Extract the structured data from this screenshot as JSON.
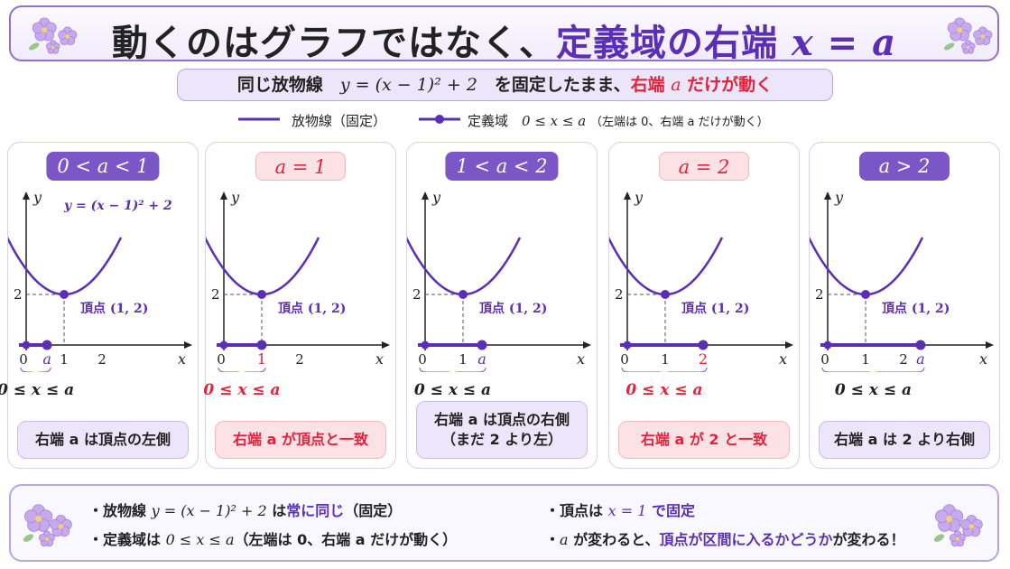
{
  "header": {
    "title_main": "動くのはグラフではなく、",
    "title_highlight": "定義域の右端",
    "title_math": "x = a"
  },
  "subtitle": {
    "text1": "同じ放物線　",
    "math": "y = (x − 1)² + 2",
    "text2": "　を固定したまま、",
    "red_text": "右端 ",
    "red_math": "a",
    "red_text2": " だけが動く"
  },
  "legend": {
    "parabola_label": "放物線（固定）",
    "domain_label": "定義域",
    "domain_math": "0 ≤ x ≤ a",
    "domain_note": "（左端は 0、右端 a だけが動く）"
  },
  "colors": {
    "accent": "#5b2fb5",
    "parabola": "#5b2fb5",
    "red": "#e4233b",
    "badge_purple": "#7b56c6",
    "badge_pink": "#fde2e5"
  },
  "panels": [
    {
      "condition": "0 < a < 1",
      "style": "purple",
      "a_value": 0.55,
      "a_label": "a",
      "a_label_color": "purple",
      "show_tick1": true,
      "show_tick2": true,
      "curve_label": "y = (x − 1)² + 2",
      "vertex_label": "頂点 (1, 2)",
      "interval": "0 ≤ x ≤ a",
      "note_lines": [
        "右端 a は頂点の左側"
      ]
    },
    {
      "condition": "a = 1",
      "style": "pink",
      "a_value": 1,
      "a_label": "1",
      "a_label_color": "red",
      "show_tick1": false,
      "show_tick2": true,
      "curve_label": "",
      "vertex_label": "頂点 (1, 2)",
      "interval": "0 ≤ x ≤ a",
      "note_lines": [
        "右端 a が頂点と一致"
      ]
    },
    {
      "condition": "1 < a < 2",
      "style": "purple",
      "a_value": 1.5,
      "a_label": "a",
      "a_label_color": "purple",
      "show_tick1": true,
      "show_tick2": false,
      "curve_label": "",
      "vertex_label": "頂点 (1, 2)",
      "interval": "0 ≤ x ≤ a",
      "note_lines": [
        "右端 a は頂点の右側",
        "（まだ 2 より左）"
      ]
    },
    {
      "condition": "a = 2",
      "style": "pink",
      "a_value": 2,
      "a_label": "2",
      "a_label_color": "red",
      "show_tick1": true,
      "show_tick2": false,
      "curve_label": "",
      "vertex_label": "頂点 (1, 2)",
      "interval": "0 ≤ x ≤ a",
      "note_lines": [
        "右端 a が 2 と一致"
      ]
    },
    {
      "condition": "a > 2",
      "style": "purple",
      "a_value": 2.45,
      "a_label": "a",
      "a_label_color": "purple",
      "show_tick1": true,
      "show_tick2": true,
      "curve_label": "",
      "vertex_label": "頂点 (1, 2)",
      "interval": "0 ≤ x ≤ a",
      "note_lines": [
        "右端 a は 2 より右側"
      ]
    }
  ],
  "axis": {
    "x_label": "x",
    "y_label": "y",
    "origin": "0",
    "tick1": "1",
    "tick2": "2",
    "y_tick": "2"
  },
  "bottom": {
    "line1_prefix": "・放物線",
    "line1_math": "y = (x − 1)² + 2",
    "line1_mid": " は",
    "line1_purple": "常に同じ",
    "line1_suffix": "（固定）",
    "line2_prefix": "・定義域は",
    "line2_math": "0 ≤ x ≤ a",
    "line2_suffix": "（左端は 0、右端 a だけが動く）",
    "line3_prefix": "・頂点は",
    "line3_math": "x = 1",
    "line3_suffix": " で固定",
    "line4_prefix": "・",
    "line4_math": "a",
    "line4_mid": " が変わると、",
    "line4_purple": "頂点が区間に入るかどうか",
    "line4_suffix": "が変わる！"
  }
}
